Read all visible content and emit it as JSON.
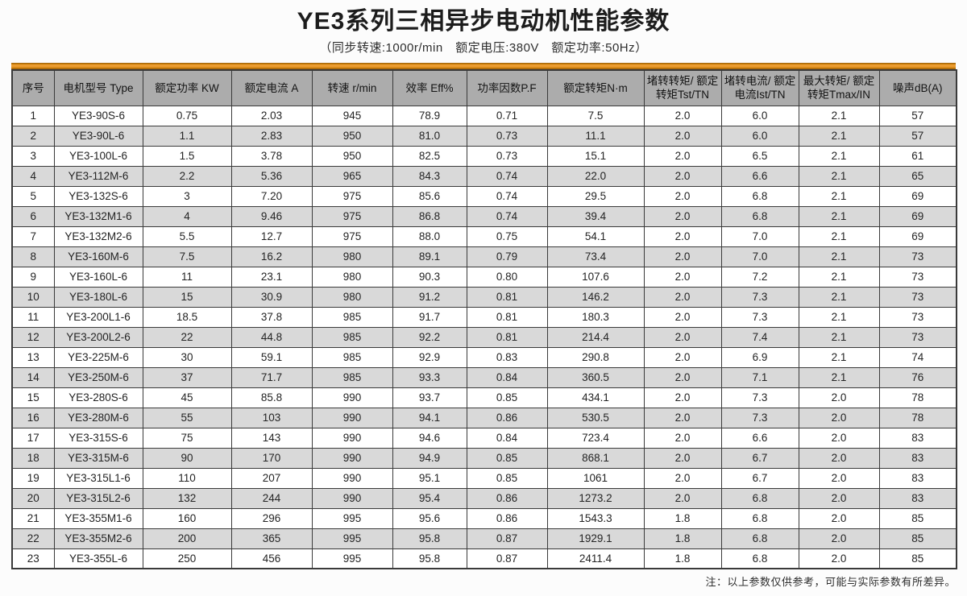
{
  "page": {
    "title": "YE3系列三相异步电动机性能参数",
    "subtitle": "（同步转速:1000r/min　额定电压:380V　额定功率:50Hz）",
    "note": "注：以上参数仅供参考，可能与实际参数有所差异。"
  },
  "colors": {
    "accent_orange": "#E8921C",
    "header_bg": "#ACACAC",
    "row_alt_bg": "#D9D9D9",
    "border": "#3A3A3A",
    "page_bg": "#FCFCFC"
  },
  "table": {
    "headers": [
      "序号",
      "电机型号 Type",
      "额定功率 KW",
      "额定电流 A",
      "转速 r/min",
      "效率 Eff%",
      "功率因数P.F",
      "额定转矩N·m",
      "堵转转矩/ 额定转矩Tst/TN",
      "堵转电流/ 额定电流Ist/TN",
      "最大转矩/ 额定转矩Tmax/IN",
      "噪声dB(A)"
    ],
    "rows": [
      [
        "1",
        "YE3-90S-6",
        "0.75",
        "2.03",
        "945",
        "78.9",
        "0.71",
        "7.5",
        "2.0",
        "6.0",
        "2.1",
        "57"
      ],
      [
        "2",
        "YE3-90L-6",
        "1.1",
        "2.83",
        "950",
        "81.0",
        "0.73",
        "11.1",
        "2.0",
        "6.0",
        "2.1",
        "57"
      ],
      [
        "3",
        "YE3-100L-6",
        "1.5",
        "3.78",
        "950",
        "82.5",
        "0.73",
        "15.1",
        "2.0",
        "6.5",
        "2.1",
        "61"
      ],
      [
        "4",
        "YE3-112M-6",
        "2.2",
        "5.36",
        "965",
        "84.3",
        "0.74",
        "22.0",
        "2.0",
        "6.6",
        "2.1",
        "65"
      ],
      [
        "5",
        "YE3-132S-6",
        "3",
        "7.20",
        "975",
        "85.6",
        "0.74",
        "29.5",
        "2.0",
        "6.8",
        "2.1",
        "69"
      ],
      [
        "6",
        "YE3-132M1-6",
        "4",
        "9.46",
        "975",
        "86.8",
        "0.74",
        "39.4",
        "2.0",
        "6.8",
        "2.1",
        "69"
      ],
      [
        "7",
        "YE3-132M2-6",
        "5.5",
        "12.7",
        "975",
        "88.0",
        "0.75",
        "54.1",
        "2.0",
        "7.0",
        "2.1",
        "69"
      ],
      [
        "8",
        "YE3-160M-6",
        "7.5",
        "16.2",
        "980",
        "89.1",
        "0.79",
        "73.4",
        "2.0",
        "7.0",
        "2.1",
        "73"
      ],
      [
        "9",
        "YE3-160L-6",
        "11",
        "23.1",
        "980",
        "90.3",
        "0.80",
        "107.6",
        "2.0",
        "7.2",
        "2.1",
        "73"
      ],
      [
        "10",
        "YE3-180L-6",
        "15",
        "30.9",
        "980",
        "91.2",
        "0.81",
        "146.2",
        "2.0",
        "7.3",
        "2.1",
        "73"
      ],
      [
        "11",
        "YE3-200L1-6",
        "18.5",
        "37.8",
        "985",
        "91.7",
        "0.81",
        "180.3",
        "2.0",
        "7.3",
        "2.1",
        "73"
      ],
      [
        "12",
        "YE3-200L2-6",
        "22",
        "44.8",
        "985",
        "92.2",
        "0.81",
        "214.4",
        "2.0",
        "7.4",
        "2.1",
        "73"
      ],
      [
        "13",
        "YE3-225M-6",
        "30",
        "59.1",
        "985",
        "92.9",
        "0.83",
        "290.8",
        "2.0",
        "6.9",
        "2.1",
        "74"
      ],
      [
        "14",
        "YE3-250M-6",
        "37",
        "71.7",
        "985",
        "93.3",
        "0.84",
        "360.5",
        "2.0",
        "7.1",
        "2.1",
        "76"
      ],
      [
        "15",
        "YE3-280S-6",
        "45",
        "85.8",
        "990",
        "93.7",
        "0.85",
        "434.1",
        "2.0",
        "7.3",
        "2.0",
        "78"
      ],
      [
        "16",
        "YE3-280M-6",
        "55",
        "103",
        "990",
        "94.1",
        "0.86",
        "530.5",
        "2.0",
        "7.3",
        "2.0",
        "78"
      ],
      [
        "17",
        "YE3-315S-6",
        "75",
        "143",
        "990",
        "94.6",
        "0.84",
        "723.4",
        "2.0",
        "6.6",
        "2.0",
        "83"
      ],
      [
        "18",
        "YE3-315M-6",
        "90",
        "170",
        "990",
        "94.9",
        "0.85",
        "868.1",
        "2.0",
        "6.7",
        "2.0",
        "83"
      ],
      [
        "19",
        "YE3-315L1-6",
        "110",
        "207",
        "990",
        "95.1",
        "0.85",
        "1061",
        "2.0",
        "6.7",
        "2.0",
        "83"
      ],
      [
        "20",
        "YE3-315L2-6",
        "132",
        "244",
        "990",
        "95.4",
        "0.86",
        "1273.2",
        "2.0",
        "6.8",
        "2.0",
        "83"
      ],
      [
        "21",
        "YE3-355M1-6",
        "160",
        "296",
        "995",
        "95.6",
        "0.86",
        "1543.3",
        "1.8",
        "6.8",
        "2.0",
        "85"
      ],
      [
        "22",
        "YE3-355M2-6",
        "200",
        "365",
        "995",
        "95.8",
        "0.87",
        "1929.1",
        "1.8",
        "6.8",
        "2.0",
        "85"
      ],
      [
        "23",
        "YE3-355L-6",
        "250",
        "456",
        "995",
        "95.8",
        "0.87",
        "2411.4",
        "1.8",
        "6.8",
        "2.0",
        "85"
      ]
    ]
  }
}
